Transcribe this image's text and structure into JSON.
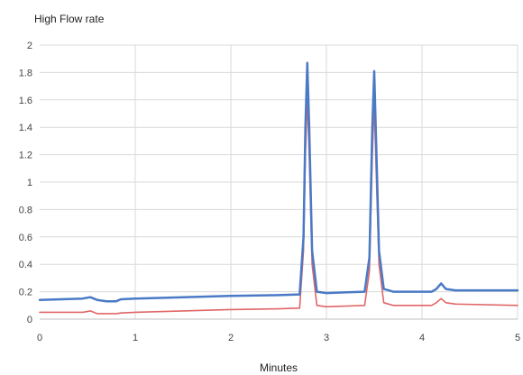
{
  "chart_data": {
    "type": "line",
    "title": "High Flow rate",
    "xlabel": "Minutes",
    "ylabel": "",
    "xlim": [
      0,
      5
    ],
    "ylim": [
      0,
      2
    ],
    "x_ticks": [
      "0",
      "1",
      "2",
      "3",
      "4",
      "5"
    ],
    "y_ticks": [
      "0",
      "0.2",
      "0.4",
      "0.6",
      "0.8",
      "1",
      "1.2",
      "1.4",
      "1.6",
      "1.8",
      "2"
    ],
    "grid": true,
    "legend": "none",
    "series": [
      {
        "color": "#4a7ac6",
        "points": [
          [
            0,
            0.14
          ],
          [
            0.45,
            0.15
          ],
          [
            0.53,
            0.16
          ],
          [
            0.6,
            0.14
          ],
          [
            0.7,
            0.13
          ],
          [
            0.8,
            0.13
          ],
          [
            0.85,
            0.145
          ],
          [
            1.0,
            0.15
          ],
          [
            1.5,
            0.16
          ],
          [
            2.0,
            0.17
          ],
          [
            2.5,
            0.175
          ],
          [
            2.72,
            0.18
          ],
          [
            2.76,
            0.6
          ],
          [
            2.78,
            1.4
          ],
          [
            2.8,
            1.87
          ],
          [
            2.82,
            1.4
          ],
          [
            2.85,
            0.5
          ],
          [
            2.9,
            0.2
          ],
          [
            3.0,
            0.19
          ],
          [
            3.4,
            0.2
          ],
          [
            3.45,
            0.45
          ],
          [
            3.48,
            1.4
          ],
          [
            3.5,
            1.81
          ],
          [
            3.52,
            1.3
          ],
          [
            3.55,
            0.5
          ],
          [
            3.6,
            0.22
          ],
          [
            3.7,
            0.2
          ],
          [
            4.1,
            0.2
          ],
          [
            4.15,
            0.22
          ],
          [
            4.2,
            0.26
          ],
          [
            4.25,
            0.22
          ],
          [
            4.35,
            0.21
          ],
          [
            5.0,
            0.21
          ]
        ]
      },
      {
        "color": "#e06666",
        "points": [
          [
            0,
            0.05
          ],
          [
            0.45,
            0.05
          ],
          [
            0.53,
            0.06
          ],
          [
            0.6,
            0.04
          ],
          [
            0.8,
            0.04
          ],
          [
            0.85,
            0.045
          ],
          [
            1.0,
            0.05
          ],
          [
            1.5,
            0.06
          ],
          [
            2.0,
            0.07
          ],
          [
            2.5,
            0.075
          ],
          [
            2.72,
            0.08
          ],
          [
            2.76,
            0.5
          ],
          [
            2.78,
            1.2
          ],
          [
            2.8,
            1.62
          ],
          [
            2.82,
            1.2
          ],
          [
            2.85,
            0.4
          ],
          [
            2.9,
            0.1
          ],
          [
            3.0,
            0.09
          ],
          [
            3.4,
            0.1
          ],
          [
            3.45,
            0.35
          ],
          [
            3.48,
            1.2
          ],
          [
            3.5,
            1.58
          ],
          [
            3.52,
            1.1
          ],
          [
            3.55,
            0.4
          ],
          [
            3.6,
            0.12
          ],
          [
            3.7,
            0.1
          ],
          [
            4.1,
            0.1
          ],
          [
            4.15,
            0.12
          ],
          [
            4.2,
            0.15
          ],
          [
            4.25,
            0.12
          ],
          [
            4.35,
            0.11
          ],
          [
            5.0,
            0.1
          ]
        ]
      }
    ]
  }
}
